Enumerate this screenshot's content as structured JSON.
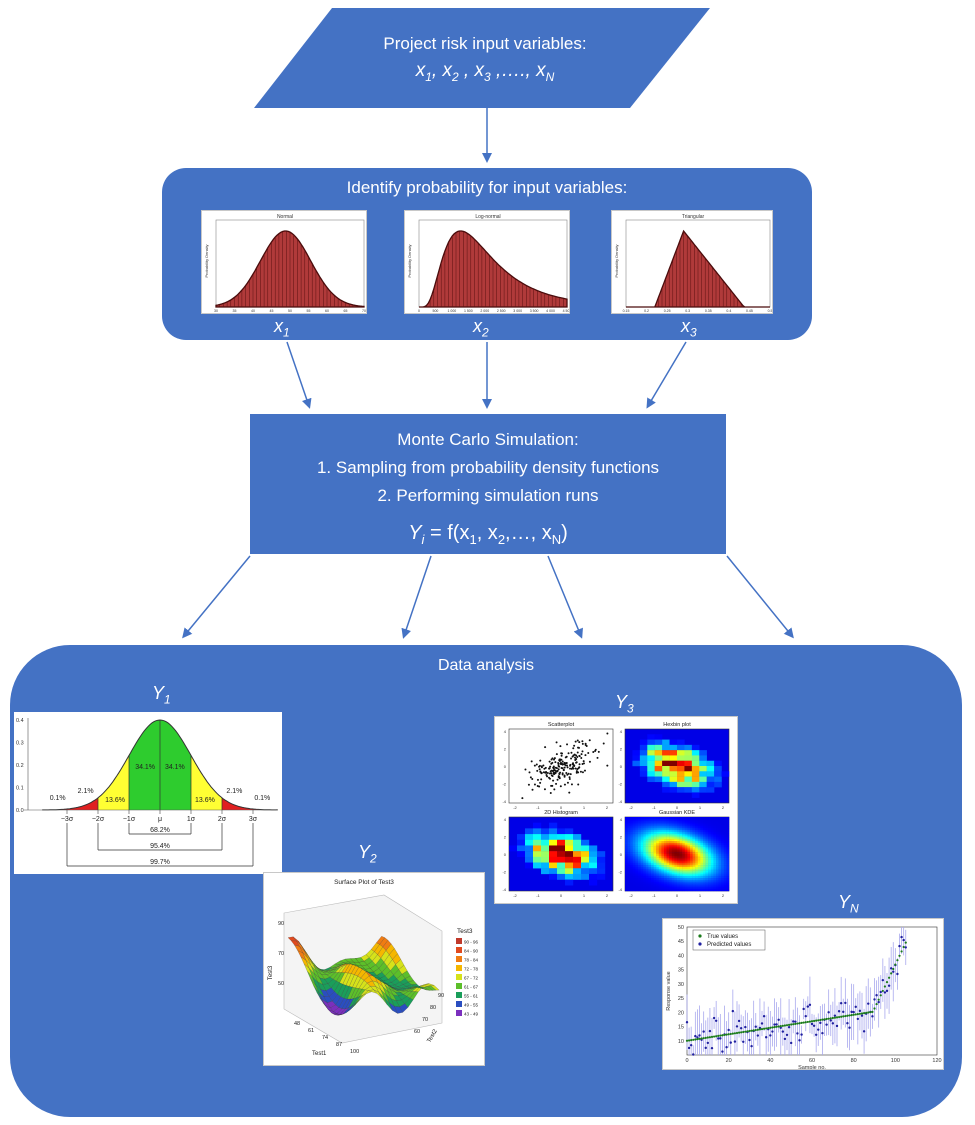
{
  "input": {
    "title": "Project risk input variables:",
    "vars": [
      "x",
      "1",
      ", x",
      "2",
      " , x",
      "3",
      " ,…., x",
      "N"
    ]
  },
  "identify": {
    "title": "Identify probability for input variables:",
    "labels": [
      {
        "base": "x",
        "sub": "1"
      },
      {
        "base": "x",
        "sub": "2"
      },
      {
        "base": "x",
        "sub": "3"
      }
    ],
    "thumb_titles": [
      "Normal",
      "Log-normal",
      "Triangular"
    ],
    "ylabel": "Probability Density",
    "normal_xticks": [
      "30",
      "35",
      "40",
      "45",
      "50",
      "55",
      "60",
      "65",
      "70"
    ],
    "lognormal_xticks": [
      "0",
      "500",
      "1 000",
      "1 500",
      "2 000",
      "2 500",
      "3 000",
      "3 500",
      "4 000",
      "4 500"
    ],
    "tri_xticks": [
      "0.15",
      "0.2",
      "0.25",
      "0.3",
      "0.35",
      "0.4",
      "0.45",
      "0.5"
    ]
  },
  "monte": {
    "title": "Monte Carlo Simulation:",
    "step1": "1.  Sampling from probability density functions",
    "step2": "2.  Performing  simulation runs",
    "formula": {
      "Y": "Y",
      "i": "i",
      "eq": " = f(x",
      "s1": "1",
      "c1": ", x",
      "s2": "2",
      "c2": ",…, x",
      "sN": "N",
      "end": ")"
    }
  },
  "analysis": {
    "title": "Data analysis",
    "y1": {
      "base": "Y",
      "sub": "1"
    },
    "y2": {
      "base": "Y",
      "sub": "2"
    },
    "y3": {
      "base": "Y",
      "sub": "3"
    },
    "yn": {
      "base": "Y",
      "sub": "N"
    }
  },
  "bell": {
    "yticks": [
      "0.0",
      "0.1",
      "0.2",
      "0.3",
      "0.4"
    ],
    "pcts": [
      "0.1%",
      "2.1%",
      "13.6%",
      "34.1%",
      "34.1%",
      "13.6%",
      "2.1%",
      "0.1%"
    ],
    "xticks": [
      "−3σ",
      "−2σ",
      "−1σ",
      "μ",
      "1σ",
      "2σ",
      "3σ"
    ],
    "brackets": [
      "68.2%",
      "95.4%",
      "99.7%"
    ],
    "colors": {
      "center": "#2ecc2e",
      "mid": "#ffff33",
      "tail": "#e02020"
    }
  },
  "surface": {
    "title": "Surface Plot of Test3",
    "legend_title": "Test3",
    "legend": [
      "90 - 96",
      "84 - 90",
      "78 - 84",
      "72 - 78",
      "67 - 72",
      "61 - 67",
      "55 - 61",
      "49 - 55",
      "43 - 49"
    ],
    "legend_colors": [
      "#c0392b",
      "#e04a1f",
      "#f07c12",
      "#f5b700",
      "#d6e21a",
      "#5cbf2a",
      "#1a9e5a",
      "#2a4ec0",
      "#7b2fbe"
    ],
    "zaxis": [
      "90",
      "70",
      "50"
    ],
    "zlabel": "Test3",
    "x1ticks": [
      "48",
      "61",
      "74",
      "87",
      "100"
    ],
    "x1label": "Test1",
    "x2ticks": [
      "60",
      "70",
      "80",
      "90"
    ],
    "x2label": "Test2"
  },
  "quad": {
    "titles": [
      "Scatterplot",
      "Hexbin plot",
      "2D Histogram",
      "Gaussian KDE"
    ],
    "yticks": [
      "4",
      "2",
      "0",
      "-2",
      "-4"
    ],
    "xticks": [
      "-2",
      "-1",
      "0",
      "1",
      "2"
    ]
  },
  "pred": {
    "legend": [
      "True values",
      "Predicted values"
    ],
    "ylabel": "Response value",
    "xlabel": "Sample no.",
    "yticks": [
      "50",
      "45",
      "40",
      "35",
      "30",
      "25",
      "20",
      "15",
      "10"
    ],
    "xticks": [
      "0",
      "20",
      "40",
      "60",
      "80",
      "100",
      "120"
    ]
  }
}
